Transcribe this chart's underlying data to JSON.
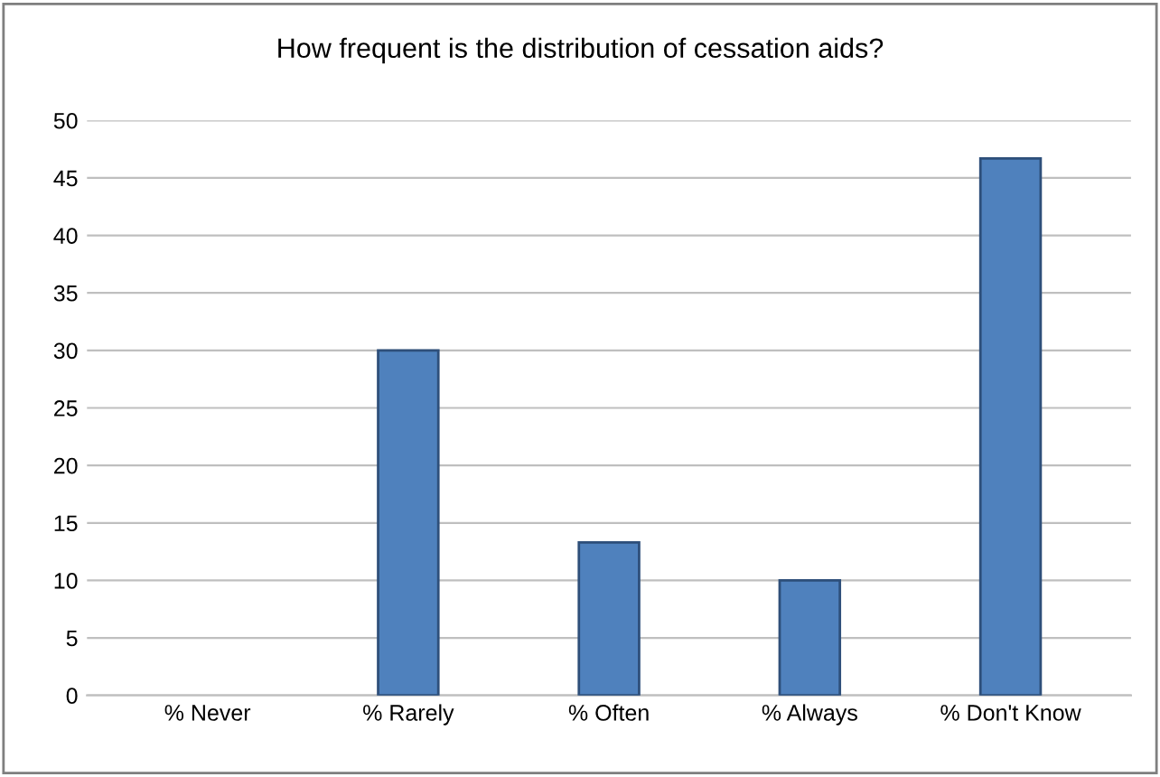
{
  "chart_data": {
    "type": "bar",
    "title": "How frequent is the distribution of cessation aids?",
    "categories": [
      "% Never",
      "% Rarely",
      "% Often",
      "% Always",
      "% Don't Know"
    ],
    "values": [
      0,
      30,
      13.3,
      10,
      46.7
    ],
    "color": "#4f81bd",
    "ylim": [
      0,
      50
    ],
    "yticks": [
      0,
      5,
      10,
      15,
      20,
      25,
      30,
      35,
      40,
      45,
      50
    ],
    "grid": "y",
    "legend": false
  }
}
